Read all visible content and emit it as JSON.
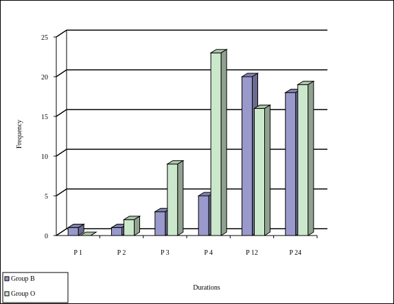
{
  "chart_data": {
    "type": "bar",
    "title": "",
    "xlabel": "Durations",
    "ylabel": "Frequency",
    "ylim": [
      0,
      25
    ],
    "yticks": [
      0,
      5,
      10,
      15,
      20,
      25
    ],
    "grid": true,
    "legend_position": "bottom-left",
    "categories": [
      "P 1",
      "P 2",
      "P 3",
      "P 4",
      "P 12",
      "P 24"
    ],
    "series": [
      {
        "name": "Group B",
        "values": [
          1,
          1,
          3,
          5,
          20,
          18
        ],
        "color": "#9999cc"
      },
      {
        "name": "Group O",
        "values": [
          0,
          2,
          9,
          23,
          16,
          19
        ],
        "color": "#cce8cc"
      }
    ]
  }
}
